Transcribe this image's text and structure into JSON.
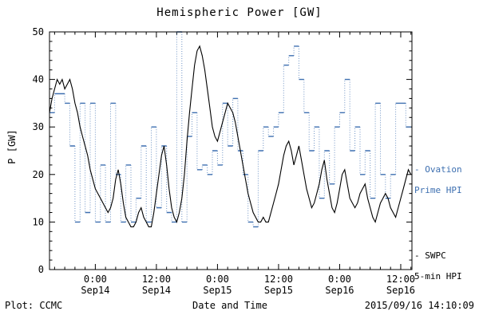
{
  "title": "Hemispheric Power [GW]",
  "footer": {
    "left": "Plot: CCMC",
    "right": "2015/09/16 14:10:09"
  },
  "legend": {
    "ovation": {
      "line1": "- Ovation",
      "line2": "Prime HPI",
      "color": "#3d6fb0"
    },
    "swpc": {
      "line1": "- SWPC",
      "line2": "5-min HPI",
      "color": "#000000"
    }
  },
  "chart_data": {
    "type": "line",
    "title": "Hemispheric Power [GW]",
    "xlabel": "Date and Time",
    "ylabel": "P [GW]",
    "ylim": [
      0,
      50
    ],
    "y_ticks": [
      0,
      10,
      20,
      30,
      40,
      50
    ],
    "x_hours_range": [
      0,
      71.2
    ],
    "x_start_label": "Sep13 15:00 (approx left edge)",
    "x_ticks": [
      {
        "hour": 9,
        "time": "0:00",
        "date": "Sep14"
      },
      {
        "hour": 21,
        "time": "12:00",
        "date": "Sep14"
      },
      {
        "hour": 33,
        "time": "0:00",
        "date": "Sep15"
      },
      {
        "hour": 45,
        "time": "12:00",
        "date": "Sep15"
      },
      {
        "hour": 57,
        "time": "0:00",
        "date": "Sep16"
      },
      {
        "hour": 69,
        "time": "12:00",
        "date": "Sep16"
      }
    ],
    "series": [
      {
        "name": "Ovation Prime HPI",
        "style": "step",
        "color": "#3d6fb0",
        "start_hour": 0,
        "step_hours": 1,
        "values": [
          33,
          37,
          37,
          35,
          26,
          10,
          35,
          12,
          35,
          10,
          22,
          10,
          35,
          20,
          10,
          22,
          10,
          15,
          26,
          10,
          30,
          13,
          26,
          12,
          10,
          50,
          10,
          28,
          33,
          21,
          22,
          20,
          25,
          22,
          35,
          26,
          36,
          25,
          20,
          10,
          9,
          25,
          30,
          28,
          30,
          33,
          43,
          45,
          47,
          40,
          33,
          25,
          30,
          15,
          25,
          18,
          30,
          33,
          40,
          25,
          30,
          20,
          25,
          15,
          35,
          20,
          15,
          20,
          35,
          35,
          30
        ]
      },
      {
        "name": "SWPC 5-min HPI",
        "style": "line",
        "color": "#000000",
        "start_hour": 0,
        "interval_hours": 0.5,
        "values": [
          33,
          36,
          38,
          40,
          39,
          40,
          38,
          39,
          40,
          38,
          35,
          33,
          30,
          28,
          26,
          24,
          21,
          19,
          17,
          16,
          15,
          14,
          13,
          12,
          13,
          15,
          19,
          21,
          18,
          14,
          11,
          10,
          9,
          9,
          10,
          12,
          13,
          11,
          10,
          9,
          9,
          12,
          16,
          20,
          24,
          26,
          22,
          17,
          13,
          11,
          10,
          12,
          15,
          20,
          27,
          33,
          38,
          43,
          46,
          47,
          45,
          42,
          38,
          34,
          30,
          28,
          27,
          29,
          31,
          33,
          35,
          34,
          33,
          31,
          28,
          25,
          22,
          19,
          16,
          14,
          12,
          11,
          10,
          10,
          11,
          10,
          10,
          12,
          14,
          16,
          18,
          21,
          24,
          26,
          27,
          25,
          22,
          24,
          26,
          23,
          20,
          17,
          15,
          13,
          14,
          16,
          18,
          21,
          23,
          19,
          16,
          13,
          12,
          14,
          17,
          20,
          21,
          18,
          15,
          14,
          13,
          14,
          16,
          17,
          18,
          15,
          13,
          11,
          10,
          12,
          14,
          15,
          16,
          15,
          13,
          12,
          11,
          13,
          15,
          17,
          19,
          21,
          20
        ]
      }
    ]
  }
}
